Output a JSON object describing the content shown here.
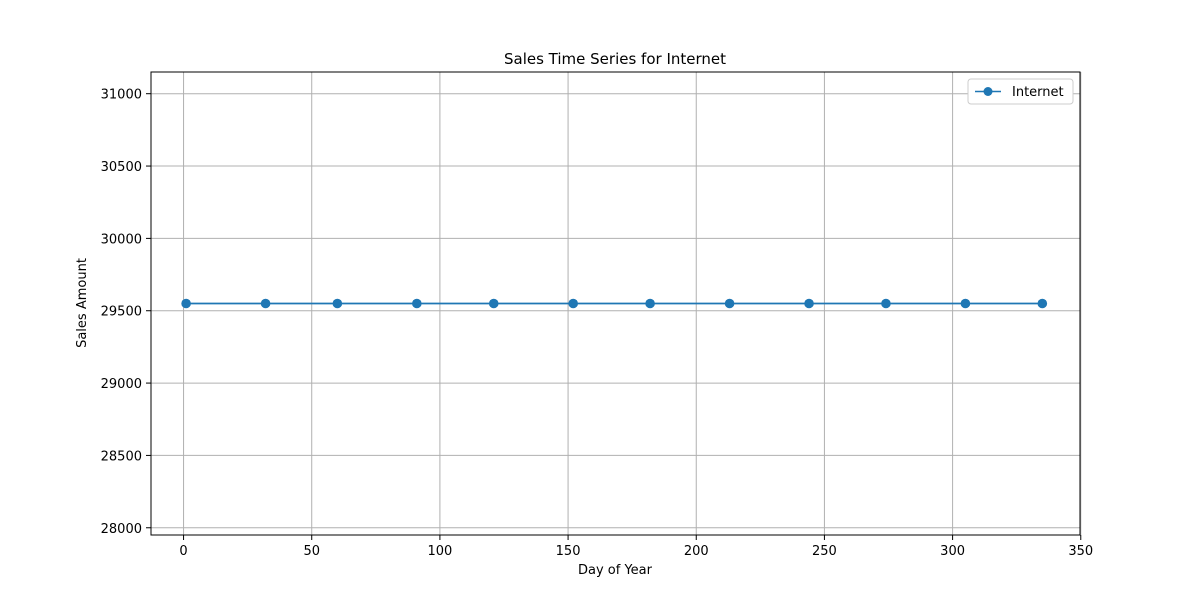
{
  "chart_data": {
    "type": "line",
    "title": "Sales Time Series for Internet",
    "xlabel": "Day of Year",
    "ylabel": "Sales Amount",
    "xlim": [
      -12.7,
      349.7
    ],
    "ylim": [
      27950,
      31150
    ],
    "xticks": [
      0,
      50,
      100,
      150,
      200,
      250,
      300,
      350
    ],
    "yticks": [
      28000,
      28500,
      29000,
      29500,
      30000,
      30500,
      31000
    ],
    "grid": true,
    "legend_position": "top-right",
    "series": [
      {
        "name": "Internet",
        "color": "#1f77b4",
        "marker": "circle",
        "x": [
          1,
          32,
          60,
          91,
          121,
          152,
          182,
          213,
          244,
          274,
          305,
          335
        ],
        "y": [
          29550,
          29550,
          29550,
          29550,
          29550,
          29550,
          29550,
          29550,
          29550,
          29550,
          29550,
          29550
        ]
      }
    ]
  }
}
